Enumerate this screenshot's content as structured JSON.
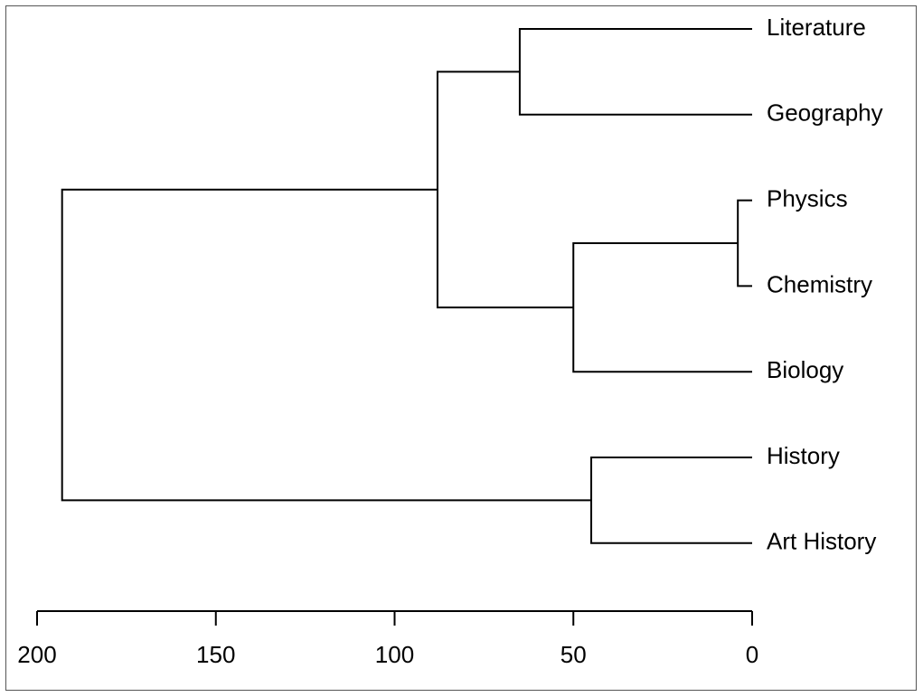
{
  "chart_data": {
    "type": "dendrogram",
    "orientation": "horizontal",
    "x_axis": {
      "direction": "reversed",
      "range": [
        200,
        0
      ],
      "ticks": [
        200,
        150,
        100,
        50,
        0
      ]
    },
    "leaves": [
      "Literature",
      "Geography",
      "Physics",
      "Chemistry",
      "Biology",
      "History",
      "Art History"
    ],
    "merges": [
      {
        "id": "m1",
        "children": [
          "Physics",
          "Chemistry"
        ],
        "height": 4
      },
      {
        "id": "m2",
        "children": [
          "m1",
          "Biology"
        ],
        "height": 50
      },
      {
        "id": "m3",
        "children": [
          "Literature",
          "Geography"
        ],
        "height": 65
      },
      {
        "id": "m4",
        "children": [
          "History",
          "Art History"
        ],
        "height": 45
      },
      {
        "id": "m5",
        "children": [
          "m3",
          "m2"
        ],
        "height": 88
      },
      {
        "id": "m6",
        "children": [
          "m5",
          "m4"
        ],
        "height": 193
      }
    ]
  }
}
